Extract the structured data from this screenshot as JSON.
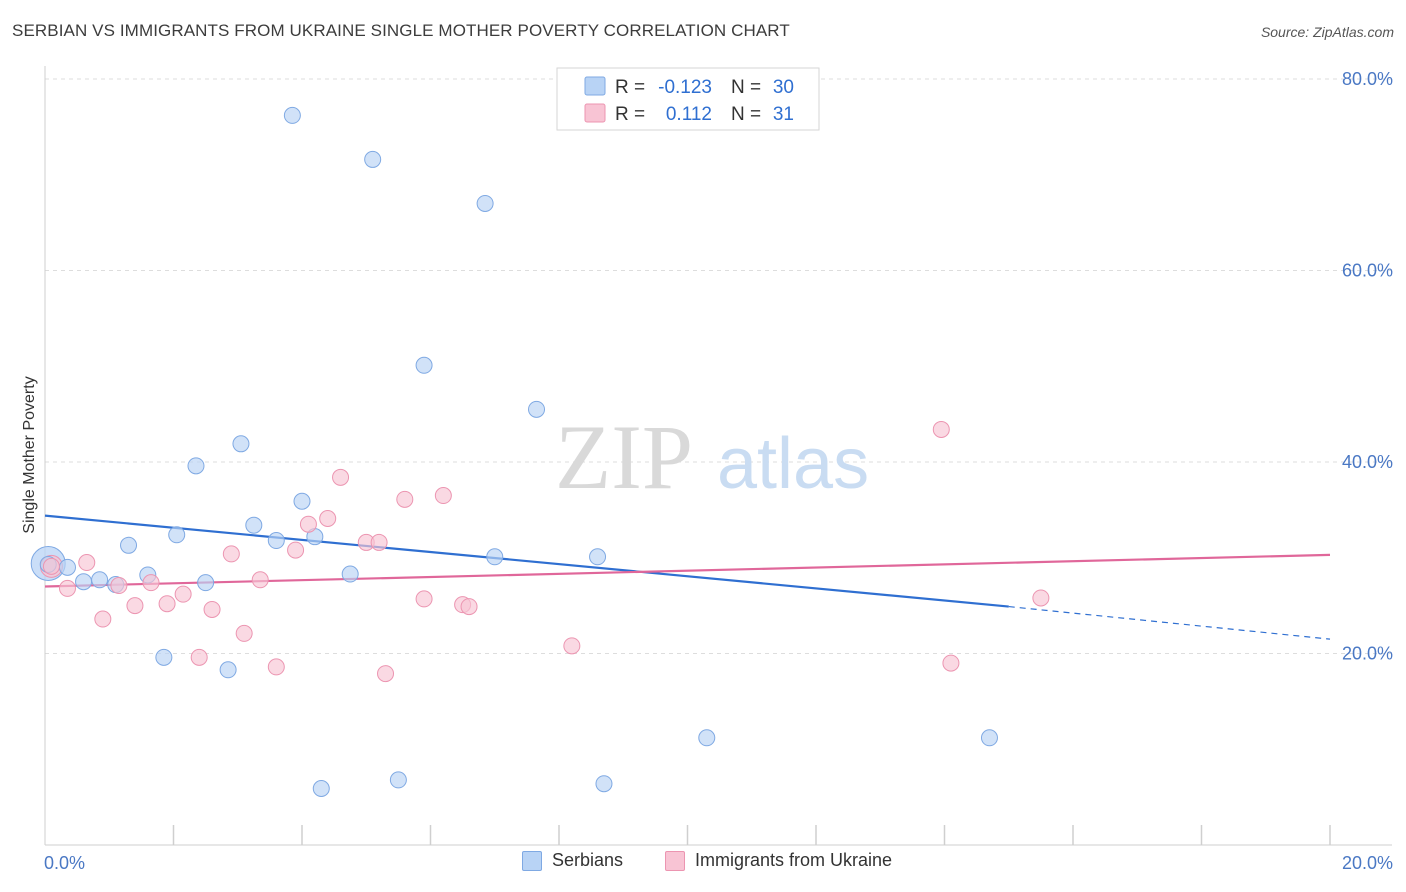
{
  "title": "SERBIAN VS IMMIGRANTS FROM UKRAINE SINGLE MOTHER POVERTY CORRELATION CHART",
  "source": "Source: ZipAtlas.com",
  "watermark": {
    "zip": "ZIP",
    "atlas": "atlas"
  },
  "colors": {
    "serbians_fill": "#b8d3f5",
    "serbians_stroke": "#7fa9e3",
    "serbians_line": "#2f6fd1",
    "ukraine_fill": "#f8c4d4",
    "ukraine_stroke": "#ec95b1",
    "ukraine_line": "#e0679a",
    "tick_text": "#4a78c4",
    "grid": "#dddddd"
  },
  "legend": {
    "rows": [
      {
        "r_label": "R = ",
        "r_value": "-0.123",
        "n_label": "N = ",
        "n_value": "30"
      },
      {
        "r_label": "R = ",
        "r_value": "0.112",
        "n_label": "N = ",
        "n_value": "31"
      }
    ]
  },
  "bottom_legend": {
    "serbians": "Serbians",
    "ukraine": "Immigrants from Ukraine"
  },
  "chart_data": {
    "type": "scatter",
    "title": "SERBIAN VS IMMIGRANTS FROM UKRAINE SINGLE MOTHER POVERTY CORRELATION CHART",
    "xlabel": "",
    "ylabel": "Single Mother Poverty",
    "xlim": [
      0,
      20
    ],
    "ylim": [
      0,
      80
    ],
    "x_tick_labels": [
      "0.0%",
      "20.0%"
    ],
    "y_ticks": [
      20,
      40,
      60,
      80
    ],
    "y_tick_labels": [
      "20.0%",
      "40.0%",
      "60.0%",
      "80.0%"
    ],
    "grid": true,
    "legend_placement": "top-center",
    "series": [
      {
        "name": "Serbians",
        "points": [
          [
            0.05,
            29.3
          ],
          [
            0.35,
            29.0
          ],
          [
            0.6,
            27.5
          ],
          [
            0.85,
            27.7
          ],
          [
            1.1,
            27.2
          ],
          [
            1.3,
            31.3
          ],
          [
            1.6,
            28.2
          ],
          [
            1.85,
            19.6
          ],
          [
            2.05,
            32.4
          ],
          [
            2.35,
            39.6
          ],
          [
            2.5,
            27.4
          ],
          [
            2.85,
            18.3
          ],
          [
            3.05,
            41.9
          ],
          [
            3.25,
            33.4
          ],
          [
            3.6,
            31.8
          ],
          [
            3.85,
            76.2
          ],
          [
            4.0,
            35.9
          ],
          [
            4.2,
            32.2
          ],
          [
            4.3,
            5.9
          ],
          [
            4.75,
            28.3
          ],
          [
            5.1,
            71.6
          ],
          [
            5.5,
            6.8
          ],
          [
            5.9,
            50.1
          ],
          [
            6.85,
            67.0
          ],
          [
            7.0,
            30.1
          ],
          [
            7.65,
            45.5
          ],
          [
            8.6,
            30.1
          ],
          [
            8.7,
            6.4
          ],
          [
            10.3,
            11.2
          ],
          [
            14.7,
            11.2
          ]
        ],
        "trend": {
          "x_start": 0,
          "y_start": 34.4,
          "x_solid_end": 15.0,
          "y_solid_end": 24.9,
          "x_end": 20,
          "y_end": 21.5
        }
      },
      {
        "name": "Immigrants from Ukraine",
        "points": [
          [
            0.1,
            29.1
          ],
          [
            0.35,
            26.8
          ],
          [
            0.65,
            29.5
          ],
          [
            0.9,
            23.6
          ],
          [
            1.15,
            27.1
          ],
          [
            1.4,
            25.0
          ],
          [
            1.65,
            27.4
          ],
          [
            1.9,
            25.2
          ],
          [
            2.15,
            26.2
          ],
          [
            2.4,
            19.6
          ],
          [
            2.6,
            24.6
          ],
          [
            2.9,
            30.4
          ],
          [
            3.1,
            22.1
          ],
          [
            3.35,
            27.7
          ],
          [
            3.6,
            18.6
          ],
          [
            3.9,
            30.8
          ],
          [
            4.1,
            33.5
          ],
          [
            4.4,
            34.1
          ],
          [
            4.6,
            38.4
          ],
          [
            5.0,
            31.6
          ],
          [
            5.2,
            31.6
          ],
          [
            5.3,
            17.9
          ],
          [
            5.6,
            36.1
          ],
          [
            5.9,
            25.7
          ],
          [
            6.2,
            36.5
          ],
          [
            6.5,
            25.1
          ],
          [
            6.6,
            24.9
          ],
          [
            8.2,
            20.8
          ],
          [
            13.95,
            43.4
          ],
          [
            14.1,
            19.0
          ],
          [
            15.5,
            25.8
          ]
        ],
        "trend": {
          "x_start": 0,
          "y_start": 27.0,
          "x_end": 20,
          "y_end": 30.3
        }
      }
    ]
  }
}
